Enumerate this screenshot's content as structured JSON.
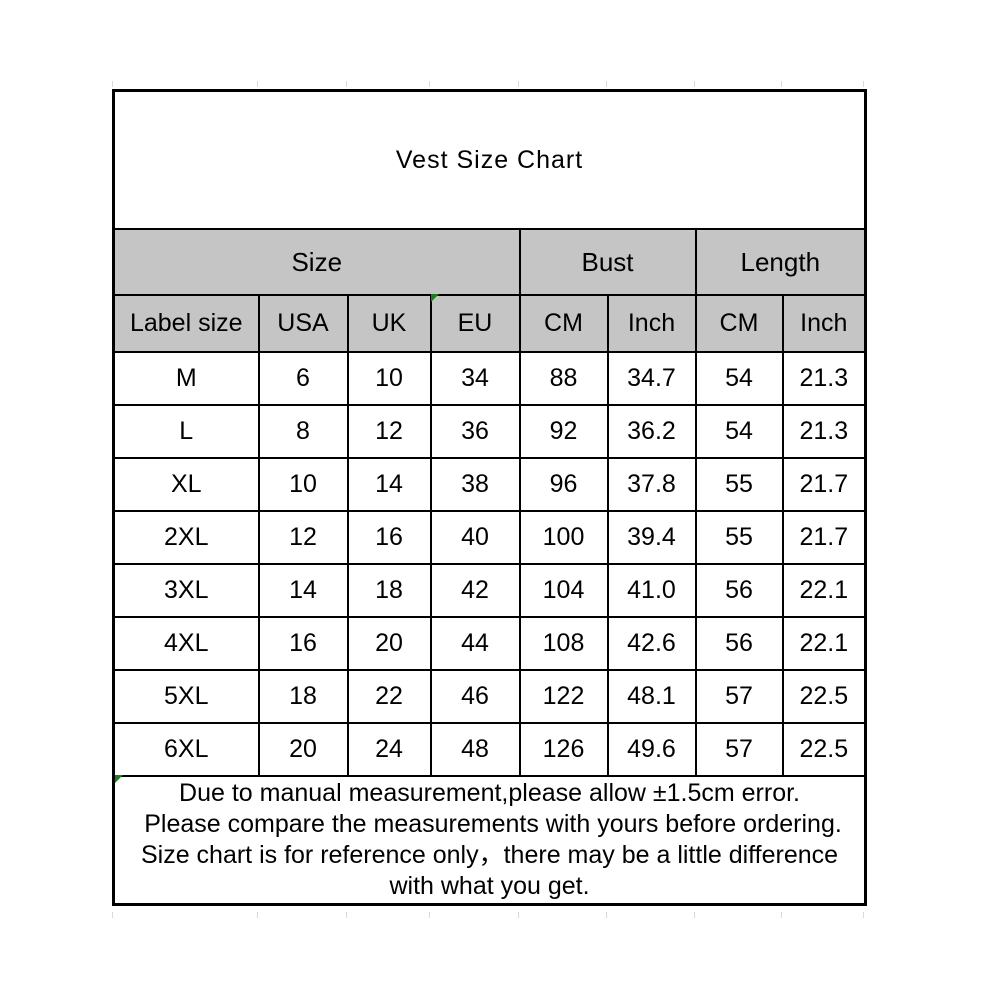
{
  "chart_data": {
    "type": "table",
    "title": "Vest Size Chart",
    "column_groups": [
      {
        "label": "Size",
        "colspan": 4
      },
      {
        "label": "Bust",
        "colspan": 2
      },
      {
        "label": "Length",
        "colspan": 2
      }
    ],
    "columns": [
      "Label size",
      "USA",
      "UK",
      "EU",
      "CM",
      "Inch",
      "CM",
      "Inch"
    ],
    "rows": [
      [
        "M",
        "6",
        "10",
        "34",
        "88",
        "34.7",
        "54",
        "21.3"
      ],
      [
        "L",
        "8",
        "12",
        "36",
        "92",
        "36.2",
        "54",
        "21.3"
      ],
      [
        "XL",
        "10",
        "14",
        "38",
        "96",
        "37.8",
        "55",
        "21.7"
      ],
      [
        "2XL",
        "12",
        "16",
        "40",
        "100",
        "39.4",
        "55",
        "21.7"
      ],
      [
        "3XL",
        "14",
        "18",
        "42",
        "104",
        "41.0",
        "56",
        "22.1"
      ],
      [
        "4XL",
        "16",
        "20",
        "44",
        "108",
        "42.6",
        "56",
        "22.1"
      ],
      [
        "5XL",
        "18",
        "22",
        "46",
        "122",
        "48.1",
        "57",
        "22.5"
      ],
      [
        "6XL",
        "20",
        "24",
        "48",
        "126",
        "49.6",
        "57",
        "22.5"
      ]
    ]
  },
  "notes": {
    "lines": [
      "Due to manual measurement,please allow ±1.5cm error.",
      " Please compare the measurements with yours before ordering.",
      "Size chart is for reference only，there may be a little difference",
      "with what you get."
    ]
  },
  "colors": {
    "header_bg": "#c5c5c5",
    "border": "#000000",
    "comment_flag_green": "#1e7b1e"
  }
}
